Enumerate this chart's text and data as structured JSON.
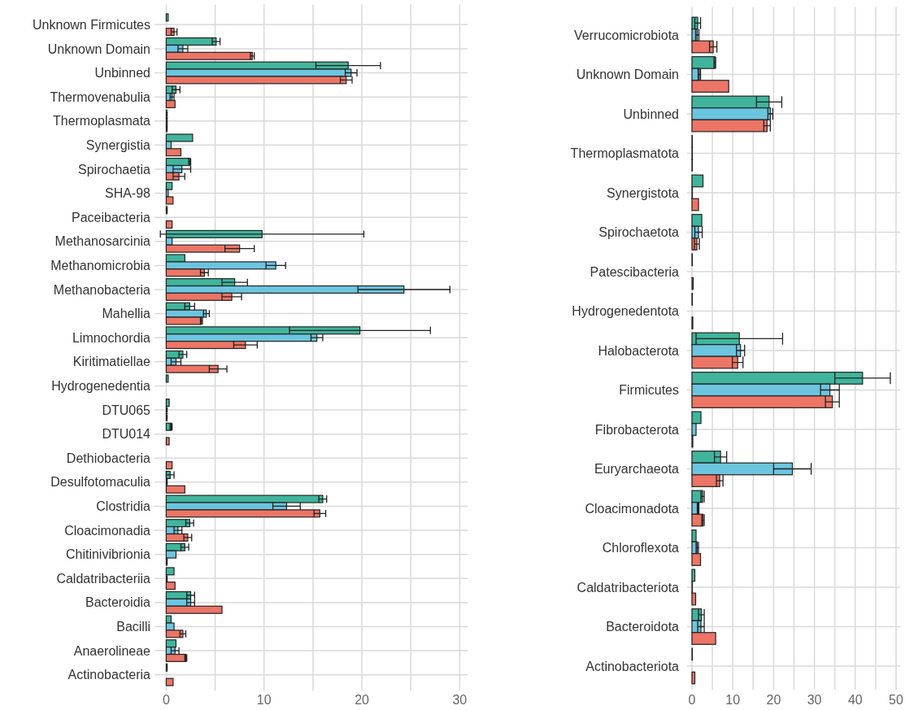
{
  "chart_data": [
    {
      "type": "bar",
      "orientation": "horizontal",
      "grid": true,
      "xlim": [
        -1.2,
        30.8
      ],
      "xticks": [
        0,
        {
          "value": 5,
          "label": null
        },
        10,
        {
          "value": 15,
          "label": null
        },
        20,
        {
          "value": 25,
          "label": null
        },
        30
      ],
      "categories": [
        "Unknown Firmicutes",
        "Unknown Domain",
        "Unbinned",
        "Thermovenabulia",
        "Thermoplasmata",
        "Synergistia",
        "Spirochaetia",
        "SHA-98",
        "Paceibacteria",
        "Methanosarcinia",
        "Methanomicrobia",
        "Methanobacteria",
        "Mahellia",
        "Limnochordia",
        "Kiritimatiellae",
        "Hydrogenedentia",
        "DTU065",
        "DTU014",
        "Dethiobacteria",
        "Desulfotomaculia",
        "Clostridia",
        "Cloacimonadia",
        "Chitinivibrionia",
        "Caldatribacteriia",
        "Bacteroidia",
        "Bacilli",
        "Anaerolineae",
        "Actinobacteria"
      ],
      "series": [
        {
          "color": "#40b59c",
          "values": [
            0.2,
            5.1,
            18.6,
            1.0,
            0.1,
            2.7,
            2.4,
            0.6,
            0.1,
            9.8,
            1.9,
            7.0,
            2.4,
            19.8,
            1.7,
            0.2,
            0.3,
            0.5,
            0,
            0.4,
            16.0,
            2.4,
            1.9,
            0.8,
            2.5,
            0.5,
            1.0,
            0.1
          ],
          "errors": [
            null,
            0.4,
            3.3,
            0.4,
            null,
            null,
            0.1,
            null,
            null,
            10.4,
            null,
            1.3,
            0.5,
            7.2,
            0.4,
            null,
            null,
            0.1,
            null,
            0.4,
            0.4,
            0.4,
            0.4,
            null,
            0.4,
            null,
            null,
            null
          ]
        },
        {
          "color": "#6cc5df",
          "values": [
            0,
            1.7,
            18.9,
            0.6,
            0.1,
            0.5,
            1.6,
            0.2,
            0,
            0.6,
            11.2,
            24.3,
            4.1,
            15.4,
            1.0,
            0,
            0.1,
            null,
            0,
            0.1,
            12.3,
            1.2,
            1.0,
            0.1,
            2.5,
            0.8,
            0.9,
            0
          ],
          "errors": [
            null,
            0.5,
            0.6,
            0.2,
            null,
            null,
            0.9,
            null,
            null,
            null,
            1.0,
            4.7,
            0.3,
            0.6,
            0.5,
            null,
            null,
            null,
            null,
            null,
            1.4,
            0.4,
            null,
            null,
            0.4,
            null,
            0.4,
            null
          ]
        },
        {
          "color": "#ec7566",
          "values": [
            0.8,
            8.8,
            18.4,
            0.9,
            0.1,
            1.5,
            1.3,
            0.7,
            0.6,
            7.5,
            3.9,
            6.7,
            3.6,
            8.1,
            5.3,
            0,
            0.1,
            0.3,
            0.6,
            1.9,
            15.7,
            2.2,
            0.1,
            0.9,
            5.7,
            1.7,
            2.0,
            0.7
          ],
          "errors": [
            0.3,
            0.2,
            0.6,
            null,
            null,
            null,
            0.6,
            null,
            null,
            1.5,
            0.4,
            1.0,
            0.1,
            1.2,
            0.9,
            null,
            null,
            null,
            null,
            null,
            0.6,
            0.4,
            null,
            null,
            null,
            0.3,
            0.1,
            null
          ]
        }
      ]
    },
    {
      "type": "bar",
      "orientation": "horizontal",
      "grid": true,
      "xlim": [
        -1.2,
        51
      ],
      "xticks": [
        0,
        {
          "value": 5,
          "label": null
        },
        10,
        {
          "value": 15,
          "label": null
        },
        20,
        {
          "value": 25,
          "label": null
        },
        30,
        {
          "value": 35,
          "label": null
        },
        40,
        {
          "value": 45,
          "label": null
        },
        50
      ],
      "categories": [
        "Verrucomicrobiota",
        "Unknown Domain",
        "Unbinned",
        "Thermoplasmatota",
        "Synergistota",
        "Spirochaetota",
        "Patescibacteria",
        "Hydrogenedentota",
        "Halobacterota",
        "Firmicutes",
        "Fibrobacterota",
        "Euryarchaeota",
        "Cloacimonadota",
        "Chloroflexota",
        "Caldatribacteriota",
        "Bacteroidota",
        "Actinobacteriota"
      ],
      "series": [
        {
          "color": "#40b59c",
          "values": [
            1.4,
            5.6,
            18.9,
            0.1,
            2.7,
            2.4,
            0.1,
            0.1,
            11.6,
            41.8,
            2.2,
            7.0,
            2.6,
            1.0,
            0.7,
            2.3,
            0.1
          ],
          "errors": [
            0.7,
            0.2,
            3.1,
            null,
            null,
            null,
            null,
            null,
            10.6,
            6.8,
            null,
            1.5,
            0.4,
            null,
            null,
            0.7,
            null
          ]
        },
        {
          "color": "#6cc5df",
          "values": [
            1.3,
            1.8,
            19.2,
            0.1,
            0.1,
            1.6,
            null,
            null,
            11.9,
            33.8,
            1.0,
            24.6,
            1.5,
            1.3,
            0.1,
            2.2,
            0
          ],
          "errors": [
            0.4,
            0.3,
            0.6,
            null,
            null,
            0.9,
            null,
            null,
            1.0,
            2.3,
            null,
            4.6,
            0.2,
            0.3,
            null,
            0.8,
            null
          ]
        },
        {
          "color": "#ec7566",
          "values": [
            5.2,
            9.0,
            18.4,
            0.1,
            1.6,
            1.2,
            0.3,
            0.2,
            11.2,
            34.4,
            0.2,
            6.8,
            2.7,
            2.1,
            0.9,
            5.8,
            0.7
          ],
          "errors": [
            0.9,
            null,
            0.8,
            null,
            null,
            0.6,
            null,
            null,
            1.3,
            1.7,
            null,
            0.8,
            0.3,
            null,
            null,
            null,
            null
          ]
        }
      ]
    }
  ]
}
